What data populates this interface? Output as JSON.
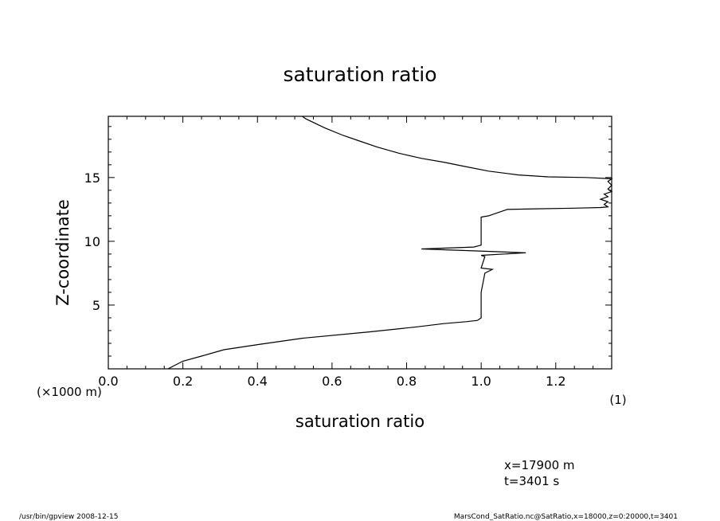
{
  "chart_data": {
    "type": "line",
    "title": "saturation ratio",
    "xlabel": "saturation ratio",
    "ylabel": "Z-coordinate",
    "x_unit": "(1)",
    "y_unit": "(×1000 m)",
    "xlim": [
      0.0,
      1.35
    ],
    "ylim": [
      0.0,
      19.8
    ],
    "x_ticks": [
      0.0,
      0.2,
      0.4,
      0.6,
      0.8,
      1.0,
      1.2
    ],
    "x_tick_labels": [
      "0.0",
      "0.2",
      "0.4",
      "0.6",
      "0.8",
      "1.0",
      "1.2"
    ],
    "y_ticks": [
      5,
      10,
      15
    ],
    "y_tick_labels": [
      "5",
      "10",
      "15"
    ],
    "grid": false,
    "series": [
      {
        "points": [
          [
            0.16,
            0.0
          ],
          [
            0.2,
            0.6
          ],
          [
            0.25,
            1.0
          ],
          [
            0.31,
            1.5
          ],
          [
            0.4,
            1.9
          ],
          [
            0.52,
            2.4
          ],
          [
            0.7,
            2.9
          ],
          [
            0.83,
            3.3
          ],
          [
            0.9,
            3.55
          ],
          [
            0.96,
            3.7
          ],
          [
            0.99,
            3.8
          ],
          [
            1.0,
            4.0
          ],
          [
            1.0,
            5.0
          ],
          [
            1.0,
            6.0
          ],
          [
            1.01,
            7.5
          ],
          [
            1.03,
            7.8
          ],
          [
            1.0,
            7.9
          ],
          [
            1.01,
            8.8
          ],
          [
            1.0,
            8.9
          ],
          [
            1.12,
            9.1
          ],
          [
            0.84,
            9.4
          ],
          [
            0.98,
            9.55
          ],
          [
            1.0,
            9.7
          ],
          [
            1.0,
            10.5
          ],
          [
            1.0,
            11.9
          ],
          [
            1.02,
            12.0
          ],
          [
            1.05,
            12.3
          ],
          [
            1.07,
            12.5
          ],
          [
            1.15,
            12.55
          ],
          [
            1.25,
            12.6
          ],
          [
            1.32,
            12.65
          ],
          [
            1.34,
            12.7
          ],
          [
            1.33,
            12.9
          ],
          [
            1.34,
            13.1
          ],
          [
            1.32,
            13.3
          ],
          [
            1.34,
            13.5
          ],
          [
            1.33,
            13.7
          ],
          [
            1.35,
            13.9
          ],
          [
            1.34,
            14.1
          ],
          [
            1.35,
            14.4
          ],
          [
            1.34,
            14.7
          ],
          [
            1.35,
            14.9
          ],
          [
            1.28,
            15.0
          ],
          [
            1.18,
            15.05
          ],
          [
            1.1,
            15.2
          ],
          [
            1.02,
            15.5
          ],
          [
            0.95,
            15.9
          ],
          [
            0.9,
            16.2
          ],
          [
            0.84,
            16.5
          ],
          [
            0.78,
            16.9
          ],
          [
            0.72,
            17.4
          ],
          [
            0.68,
            17.8
          ],
          [
            0.63,
            18.3
          ],
          [
            0.58,
            18.9
          ],
          [
            0.53,
            19.6
          ],
          [
            0.52,
            19.8
          ]
        ]
      }
    ]
  },
  "footer": {
    "info_line1": "x=17900  m",
    "info_line2": "t=3401  s",
    "program": "/usr/bin/gpview   2008-12-15",
    "source": "MarsCond_SatRatio.nc@SatRatio,x=18000,z=0:20000,t=3401"
  }
}
